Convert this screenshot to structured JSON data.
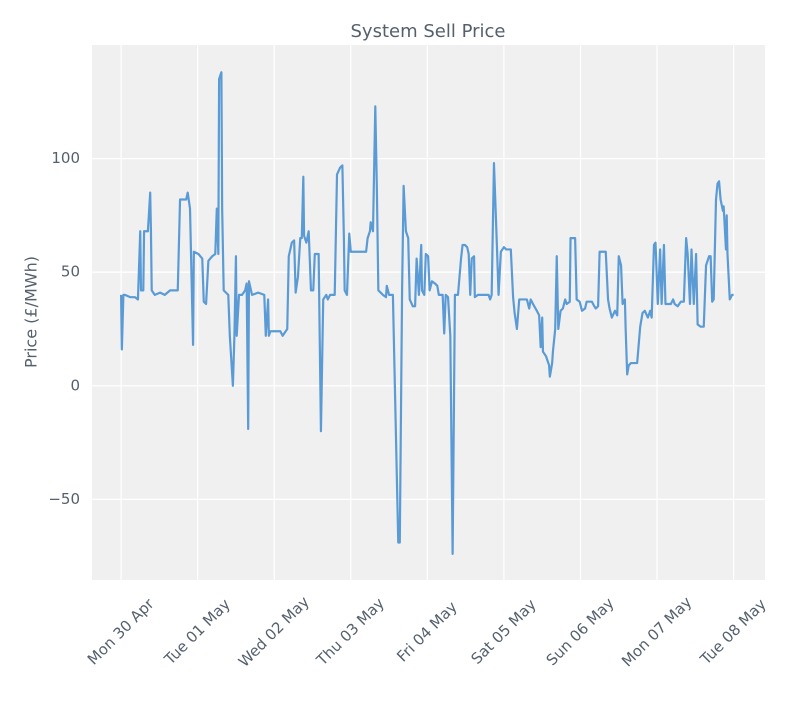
{
  "chart_data": {
    "type": "line",
    "title": "System Sell Price",
    "y_label": "Price (£/MWh)",
    "color": "#5b9bd5",
    "grid": true,
    "xlim": [
      -0.38,
      8.41
    ],
    "ylim": [
      -85.5,
      150
    ],
    "xticks": [
      {
        "value": 0,
        "label": "Mon 30 Apr"
      },
      {
        "value": 1,
        "label": "Tue 01 May"
      },
      {
        "value": 2,
        "label": "Wed 02 May"
      },
      {
        "value": 3,
        "label": "Thu 03 May"
      },
      {
        "value": 4,
        "label": "Fri 04 May"
      },
      {
        "value": 5,
        "label": "Sat 05 May"
      },
      {
        "value": 6,
        "label": "Sun 06 May"
      },
      {
        "value": 7,
        "label": "Mon 07 May"
      },
      {
        "value": 8,
        "label": "Tue 08 May"
      }
    ],
    "yticks": [
      {
        "value": -50,
        "label": "−50"
      },
      0,
      50,
      100
    ],
    "x": [
      0,
      0.01,
      0.03,
      0.05,
      0.12,
      0.18,
      0.22,
      0.25,
      0.26,
      0.29,
      0.3,
      0.35,
      0.38,
      0.39,
      0.4,
      0.44,
      0.51,
      0.57,
      0.64,
      0.74,
      0.77,
      0.85,
      0.87,
      0.9,
      0.94,
      0.95,
      1.01,
      1.06,
      1.08,
      1.11,
      1.14,
      1.19,
      1.23,
      1.25,
      1.27,
      1.28,
      1.31,
      1.32,
      1.34,
      1.4,
      1.42,
      1.46,
      1.48,
      1.5,
      1.51,
      1.54,
      1.58,
      1.62,
      1.64,
      1.66,
      1.67,
      1.71,
      1.79,
      1.87,
      1.89,
      1.92,
      1.93,
      1.95,
      2.08,
      2.11,
      2.17,
      2.19,
      2.23,
      2.26,
      2.28,
      2.31,
      2.34,
      2.36,
      2.38,
      2.39,
      2.42,
      2.45,
      2.48,
      2.51,
      2.53,
      2.58,
      2.61,
      2.64,
      2.68,
      2.7,
      2.73,
      2.79,
      2.82,
      2.86,
      2.89,
      2.91,
      2.92,
      2.95,
      2.98,
      3.0,
      3.12,
      3.2,
      3.22,
      3.25,
      3.26,
      3.29,
      3.32,
      3.34,
      3.36,
      3.42,
      3.46,
      3.47,
      3.5,
      3.55,
      3.62,
      3.64,
      3.67,
      3.69,
      3.72,
      3.75,
      3.77,
      3.81,
      3.84,
      3.86,
      3.89,
      3.92,
      3.93,
      3.96,
      3.98,
      4.01,
      4.03,
      4.06,
      4.1,
      4.13,
      4.15,
      4.2,
      4.22,
      4.24,
      4.27,
      4.3,
      4.33,
      4.36,
      4.4,
      4.44,
      4.46,
      4.49,
      4.52,
      4.54,
      4.56,
      4.58,
      4.61,
      4.62,
      4.66,
      4.75,
      4.8,
      4.82,
      4.84,
      4.87,
      4.91,
      4.93,
      4.96,
      5.0,
      5.03,
      5.09,
      5.12,
      5.14,
      5.17,
      5.2,
      5.26,
      5.3,
      5.33,
      5.35,
      5.38,
      5.43,
      5.46,
      5.48,
      5.5,
      5.51,
      5.55,
      5.59,
      5.6,
      5.63,
      5.64,
      5.67,
      5.69,
      5.71,
      5.74,
      5.77,
      5.8,
      5.82,
      5.86,
      5.87,
      5.93,
      5.95,
      5.99,
      6.02,
      6.06,
      6.08,
      6.15,
      6.18,
      6.2,
      6.23,
      6.25,
      6.33,
      6.36,
      6.38,
      6.41,
      6.45,
      6.48,
      6.5,
      6.53,
      6.55,
      6.58,
      6.59,
      6.61,
      6.63,
      6.66,
      6.71,
      6.74,
      6.78,
      6.81,
      6.84,
      6.88,
      6.91,
      6.93,
      6.96,
      6.98,
      7.01,
      7.04,
      7.06,
      7.09,
      7.11,
      7.18,
      7.21,
      7.23,
      7.27,
      7.31,
      7.35,
      7.38,
      7.4,
      7.43,
      7.45,
      7.48,
      7.51,
      7.53,
      7.57,
      7.61,
      7.64,
      7.68,
      7.7,
      7.72,
      7.74,
      7.77,
      7.79,
      7.81,
      7.83,
      7.86,
      7.87,
      7.9,
      7.91,
      7.92,
      7.95,
      7.98,
      8.0
    ],
    "values": [
      40,
      16,
      40,
      40,
      39,
      39,
      38,
      68,
      42,
      42,
      68,
      68,
      85,
      68,
      42,
      40,
      41,
      40,
      42,
      42,
      82,
      82,
      85,
      78,
      18,
      59,
      58,
      56,
      37,
      36,
      55,
      57,
      58,
      78,
      58,
      135,
      138,
      78,
      42,
      40,
      22,
      0,
      22,
      57,
      22,
      40,
      40,
      42,
      45,
      -19,
      46,
      40,
      41,
      40,
      22,
      38,
      22,
      24,
      24,
      22,
      25,
      57,
      63,
      64,
      41,
      48,
      65,
      65,
      92,
      66,
      63,
      68,
      42,
      42,
      58,
      58,
      -20,
      38,
      40,
      38,
      40,
      40,
      93,
      96,
      97,
      65,
      42,
      40,
      67,
      59,
      59,
      59,
      65,
      68,
      72,
      68,
      123,
      88,
      42,
      40,
      39,
      44,
      40,
      40,
      -69,
      -69,
      42,
      88,
      68,
      65,
      38,
      35,
      35,
      56,
      40,
      62,
      42,
      40,
      58,
      57,
      42,
      46,
      45,
      44,
      40,
      40,
      23,
      40,
      39,
      22,
      -74,
      40,
      40,
      56,
      62,
      62,
      61,
      58,
      40,
      56,
      57,
      39,
      40,
      40,
      40,
      38,
      40,
      98,
      60,
      40,
      59,
      61,
      60,
      60,
      39,
      32,
      25,
      38,
      38,
      38,
      34,
      38,
      36,
      33,
      31,
      17,
      30,
      15,
      13,
      9,
      4,
      10,
      15,
      25,
      57,
      25,
      33,
      34,
      38,
      36,
      37,
      65,
      65,
      38,
      37,
      33,
      34,
      37,
      37,
      35,
      34,
      35,
      59,
      59,
      38,
      34,
      30,
      33,
      31,
      57,
      53,
      36,
      38,
      25,
      5,
      9,
      10,
      10,
      10,
      26,
      32,
      33,
      30,
      33,
      30,
      62,
      63,
      36,
      60,
      36,
      62,
      36,
      36,
      38,
      36,
      35,
      37,
      37,
      65,
      58,
      36,
      60,
      36,
      58,
      27,
      26,
      26,
      53,
      57,
      57,
      37,
      38,
      82,
      89,
      90,
      82,
      77,
      79,
      60,
      75,
      58,
      38,
      40,
      40
    ]
  }
}
